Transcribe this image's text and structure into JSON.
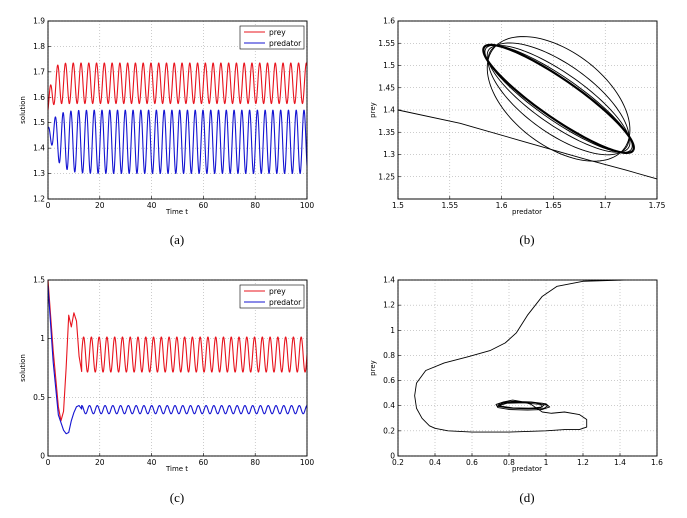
{
  "chart_data": [
    {
      "id": "a",
      "type": "line",
      "caption": "(a)",
      "xlabel": "Time t",
      "ylabel": "solution",
      "xlim": [
        0,
        100
      ],
      "ylim": [
        1.2,
        1.9
      ],
      "xticks": [
        "0",
        "20",
        "40",
        "60",
        "80",
        "100"
      ],
      "yticks": [
        "1.2",
        "1.3",
        "1.4",
        "1.5",
        "1.6",
        "1.7",
        "1.8",
        "1.9"
      ],
      "grid": true,
      "legend_position": "top-right",
      "series": [
        {
          "name": "prey",
          "color": "#e8141e",
          "waveform": {
            "base": 1.655,
            "amp": 0.08,
            "period": 3.0,
            "phase": 0.0,
            "start": 1.55,
            "tau": 1.2
          }
        },
        {
          "name": "predator",
          "color": "#1414d2",
          "waveform": {
            "base": 1.425,
            "amp": 0.125,
            "period": 3.0,
            "phase": 1.9,
            "start": 1.48,
            "tau": 3.0
          }
        }
      ]
    },
    {
      "id": "b",
      "type": "line",
      "caption": "(b)",
      "xlabel": "predator",
      "ylabel": "prey",
      "xlim": [
        1.5,
        1.75
      ],
      "ylim": [
        1.2,
        1.6
      ],
      "xticks": [
        "1.5",
        "1.55",
        "1.6",
        "1.65",
        "1.7",
        "1.75"
      ],
      "yticks": [
        "1.25",
        "1.3",
        "1.35",
        "1.4",
        "1.45",
        "1.5",
        "1.55",
        "1.6"
      ],
      "grid": true,
      "phase_portrait": {
        "entry": [
          [
            1.5,
            1.4
          ],
          [
            1.56,
            1.37
          ],
          [
            1.62,
            1.33
          ],
          [
            1.68,
            1.29
          ],
          [
            1.72,
            1.265
          ],
          [
            1.75,
            1.245
          ]
        ],
        "cycle_center": [
          1.655,
          1.425
        ],
        "cycle_radii_x": [
          0.085,
          0.083,
          0.08,
          0.078,
          0.077
        ],
        "cycle_radii_y": [
          0.045,
          0.05,
          0.06,
          0.08,
          0.11
        ],
        "cycle_angle_deg": -32
      }
    },
    {
      "id": "c",
      "type": "line",
      "caption": "(c)",
      "xlabel": "Time t",
      "ylabel": "solution",
      "xlim": [
        0,
        100
      ],
      "ylim": [
        0,
        1.5
      ],
      "xticks": [
        "0",
        "20",
        "40",
        "60",
        "80",
        "100"
      ],
      "yticks": [
        "0",
        "0.5",
        "1",
        "1.5"
      ],
      "grid": true,
      "legend_position": "top-right",
      "series": [
        {
          "name": "prey",
          "color": "#e8141e",
          "transient": [
            [
              0,
              1.5
            ],
            [
              2,
              0.9
            ],
            [
              4,
              0.42
            ],
            [
              5,
              0.3
            ],
            [
              6,
              0.38
            ],
            [
              7,
              0.75
            ],
            [
              8,
              1.2
            ],
            [
              9,
              1.1
            ],
            [
              10,
              1.22
            ],
            [
              11,
              1.15
            ],
            [
              12,
              0.85
            ],
            [
              13,
              0.72
            ]
          ],
          "waveform": {
            "base": 0.865,
            "amp": 0.15,
            "period": 3.0,
            "phase": 0.0,
            "from": 13
          }
        },
        {
          "name": "predator",
          "color": "#1414d2",
          "transient": [
            [
              0,
              1.45
            ],
            [
              2,
              0.8
            ],
            [
              4,
              0.35
            ],
            [
              6,
              0.22
            ],
            [
              7,
              0.19
            ],
            [
              8,
              0.2
            ],
            [
              9,
              0.3
            ],
            [
              10,
              0.37
            ],
            [
              11,
              0.42
            ],
            [
              12,
              0.43
            ],
            [
              13,
              0.4
            ]
          ],
          "waveform": {
            "base": 0.395,
            "amp": 0.035,
            "period": 3.0,
            "phase": 1.5,
            "from": 13
          }
        }
      ]
    },
    {
      "id": "d",
      "type": "line",
      "caption": "(d)",
      "xlabel": "predator",
      "ylabel": "prey",
      "xlim": [
        0.2,
        1.6
      ],
      "ylim": [
        0,
        1.4
      ],
      "xticks": [
        "0.2",
        "0.4",
        "0.6",
        "0.8",
        "1",
        "1.2",
        "1.4",
        "1.6"
      ],
      "yticks": [
        "0",
        "0.2",
        "0.4",
        "0.6",
        "0.8",
        "1",
        "1.2",
        "1.4"
      ],
      "grid": true,
      "phase_portrait": {
        "path": [
          [
            1.42,
            1.4
          ],
          [
            1.2,
            1.39
          ],
          [
            1.06,
            1.35
          ],
          [
            0.98,
            1.27
          ],
          [
            0.9,
            1.12
          ],
          [
            0.84,
            0.98
          ],
          [
            0.78,
            0.9
          ],
          [
            0.7,
            0.84
          ],
          [
            0.58,
            0.79
          ],
          [
            0.45,
            0.74
          ],
          [
            0.35,
            0.68
          ],
          [
            0.3,
            0.58
          ],
          [
            0.29,
            0.48
          ],
          [
            0.3,
            0.38
          ],
          [
            0.33,
            0.3
          ],
          [
            0.37,
            0.24
          ],
          [
            0.4,
            0.22
          ],
          [
            0.47,
            0.2
          ],
          [
            0.6,
            0.19
          ],
          [
            0.8,
            0.19
          ],
          [
            1.0,
            0.2
          ],
          [
            1.1,
            0.21
          ],
          [
            1.18,
            0.21
          ],
          [
            1.22,
            0.23
          ],
          [
            1.22,
            0.29
          ],
          [
            1.18,
            0.33
          ],
          [
            1.1,
            0.35
          ],
          [
            1.03,
            0.34
          ],
          [
            0.98,
            0.35
          ],
          [
            0.95,
            0.38
          ],
          [
            0.92,
            0.41
          ],
          [
            0.88,
            0.43
          ],
          [
            0.82,
            0.445
          ],
          [
            0.77,
            0.43
          ],
          [
            0.73,
            0.41
          ],
          [
            0.74,
            0.385
          ],
          [
            0.8,
            0.37
          ],
          [
            0.9,
            0.365
          ],
          [
            0.98,
            0.37
          ],
          [
            1.02,
            0.39
          ],
          [
            1.0,
            0.415
          ],
          [
            0.92,
            0.43
          ],
          [
            0.82,
            0.435
          ],
          [
            0.75,
            0.42
          ],
          [
            0.74,
            0.395
          ],
          [
            0.8,
            0.38
          ],
          [
            0.9,
            0.375
          ],
          [
            0.99,
            0.38
          ],
          [
            1.01,
            0.4
          ],
          [
            0.98,
            0.42
          ],
          [
            0.88,
            0.43
          ],
          [
            0.78,
            0.425
          ],
          [
            0.74,
            0.405
          ],
          [
            0.78,
            0.385
          ],
          [
            0.88,
            0.378
          ],
          [
            0.97,
            0.385
          ],
          [
            0.99,
            0.405
          ],
          [
            0.94,
            0.425
          ],
          [
            0.84,
            0.43
          ],
          [
            0.76,
            0.418
          ],
          [
            0.75,
            0.398
          ],
          [
            0.82,
            0.383
          ],
          [
            0.92,
            0.38
          ],
          [
            0.98,
            0.39
          ],
          [
            0.97,
            0.41
          ],
          [
            0.88,
            0.423
          ],
          [
            0.79,
            0.42
          ],
          [
            0.75,
            0.402
          ]
        ]
      }
    }
  ]
}
